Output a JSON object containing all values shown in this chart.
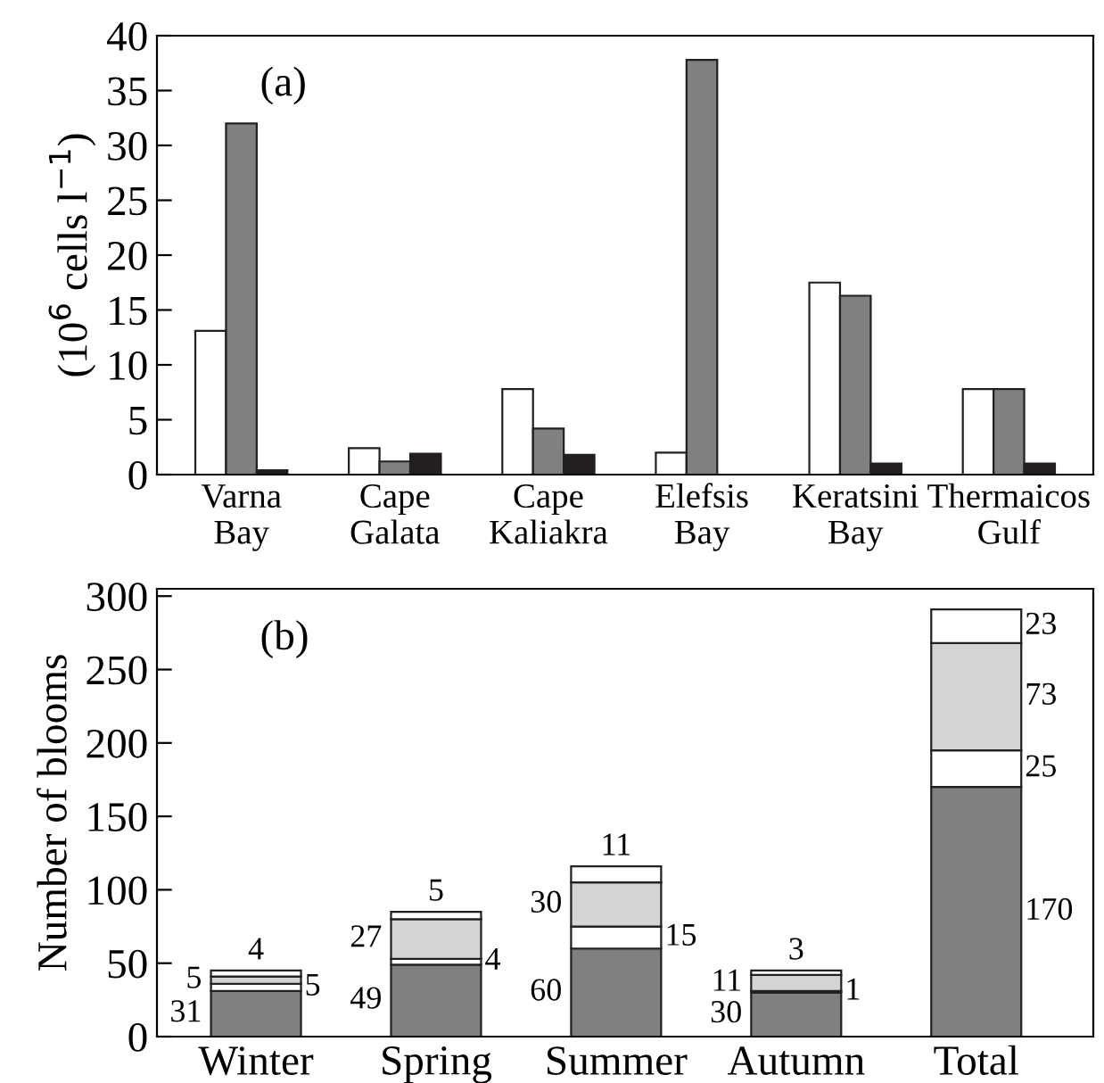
{
  "chart_data": [
    {
      "type": "bar",
      "ylabel": "(10$^{6}$ cells l$^{−1}$)",
      "annotations": [
        "(a)"
      ],
      "categories": [
        "Varna\nBay",
        "Cape\nGalata",
        "Cape\nKaliakra",
        "Elefsis\nBay",
        "Keratsini\nBay",
        "Thermaicos\nGulf"
      ],
      "series": [
        {
          "color": "#ffffff",
          "values": [
            13.1,
            2.4,
            7.8,
            2.0,
            17.5,
            7.8
          ]
        },
        {
          "color": "#808083",
          "values": [
            32.0,
            1.2,
            4.2,
            37.8,
            16.3,
            7.8
          ]
        },
        {
          "color": "#231f20",
          "values": [
            0.4,
            1.9,
            1.8,
            null,
            1.0,
            1.0
          ]
        }
      ],
      "ylim": [
        0,
        40
      ],
      "yticks": [
        0,
        5,
        10,
        15,
        20,
        25,
        30,
        35,
        40
      ],
      "grid": false,
      "legend": false
    },
    {
      "type": "bar",
      "stacked": true,
      "ylabel": "Number of blooms",
      "annotations": [
        "(b)"
      ],
      "categories": [
        "Winter",
        "Spring",
        "Summer",
        "Autumn",
        "Total"
      ],
      "series": [
        {
          "color": "#808083",
          "values": [
            31,
            49,
            60,
            30,
            170
          ]
        },
        {
          "color": "#ffffff",
          "values": [
            5,
            4,
            15,
            1,
            25
          ]
        },
        {
          "color": "#d4d4d6",
          "values": [
            5,
            27,
            30,
            11,
            73
          ]
        },
        {
          "color": "#ffffff",
          "values": [
            4,
            5,
            11,
            3,
            23
          ]
        }
      ],
      "data_labels": true,
      "ylim": [
        0,
        305
      ],
      "yticks": [
        0,
        50,
        100,
        150,
        200,
        250,
        300
      ],
      "grid": false,
      "legend": false
    }
  ]
}
